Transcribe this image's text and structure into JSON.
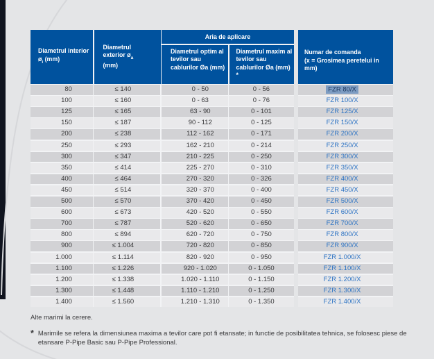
{
  "colors": {
    "page_bg": "#e4e5e7",
    "edge_bar": "#10141f",
    "header_bg": "#00529e",
    "header_text": "#ffffff",
    "row_dark": "#d2d2d5",
    "row_light": "#e9e9eb",
    "body_text": "#39393b",
    "order_code_link": "#2e74c4",
    "selection_bg": "#7d9cc2",
    "selection_text": "#1a365e",
    "table_gap": "#f2f3f5",
    "curve": "#d6d7da"
  },
  "table": {
    "span_header": "Aria de aplicare",
    "columns": [
      {
        "pre": "Diametrul interior ø",
        "sub": "i",
        "post": " (mm)"
      },
      {
        "pre": "Diametrul exterior ø",
        "sub": "a",
        "post": " (mm)"
      },
      {
        "title": "Diametrul optim al tevilor sau cablurilor Øa (mm)"
      },
      {
        "title": "Diametrul maxim al tevilor sau cablurilor Øa (mm) *"
      },
      {
        "title": "Numar de comanda",
        "title2": "(x = Grosimea peretelui in mm)"
      }
    ],
    "selected_row_index": 0,
    "rows": [
      [
        "80",
        "≤ 140",
        "0 - 50",
        "0 - 56",
        "FZR 80/X"
      ],
      [
        "100",
        "≤ 160",
        "0 - 63",
        "0 - 76",
        "FZR 100/X"
      ],
      [
        "125",
        "≤ 165",
        "63 - 90",
        "0 - 101",
        "FZR 125/X"
      ],
      [
        "150",
        "≤ 187",
        "90 - 112",
        "0 - 125",
        "FZR 150/X"
      ],
      [
        "200",
        "≤ 238",
        "112 - 162",
        "0 - 171",
        "FZR 200/X"
      ],
      [
        "250",
        "≤ 293",
        "162 - 210",
        "0 - 214",
        "FZR 250/X"
      ],
      [
        "300",
        "≤ 347",
        "210 - 225",
        "0 - 250",
        "FZR 300/X"
      ],
      [
        "350",
        "≤ 414",
        "225 - 270",
        "0 - 310",
        "FZR 350/X"
      ],
      [
        "400",
        "≤ 464",
        "270 - 320",
        "0 - 326",
        "FZR 400/X"
      ],
      [
        "450",
        "≤ 514",
        "320 - 370",
        "0 - 400",
        "FZR 450/X"
      ],
      [
        "500",
        "≤ 570",
        "370 - 420",
        "0 - 450",
        "FZR 500/X"
      ],
      [
        "600",
        "≤ 673",
        "420 - 520",
        "0 - 550",
        "FZR 600/X"
      ],
      [
        "700",
        "≤ 787",
        "520 - 620",
        "0 - 650",
        "FZR 700/X"
      ],
      [
        "800",
        "≤ 894",
        "620 - 720",
        "0 - 750",
        "FZR 800/X"
      ],
      [
        "900",
        "≤ 1.004",
        "720 - 820",
        "0 - 850",
        "FZR 900/X"
      ],
      [
        "1.000",
        "≤ 1.114",
        "820 - 920",
        "0 - 950",
        "FZR 1.000/X"
      ],
      [
        "1.100",
        "≤ 1.226",
        "920 - 1.020",
        "0 - 1.050",
        "FZR 1.100/X"
      ],
      [
        "1.200",
        "≤ 1.338",
        "1.020 - 1.110",
        "0 - 1.150",
        "FZR 1.200/X"
      ],
      [
        "1.300",
        "≤ 1.448",
        "1.110 - 1.210",
        "0 - 1.250",
        "FZR 1.300/X"
      ],
      [
        "1.400",
        "≤ 1.560",
        "1.210 - 1.310",
        "0 - 1.350",
        "FZR 1.400/X"
      ]
    ]
  },
  "notes": {
    "other_sizes": "Alte marimi la cerere.",
    "footnote_marker": "*",
    "footnote": "Marimile se refera la dimensiunea maxima a tevilor care pot fi etansate; in functie de posibilitatea tehnica, se folosesc piese de etansare P-Pipe Basic sau P-Pipe Professional."
  }
}
